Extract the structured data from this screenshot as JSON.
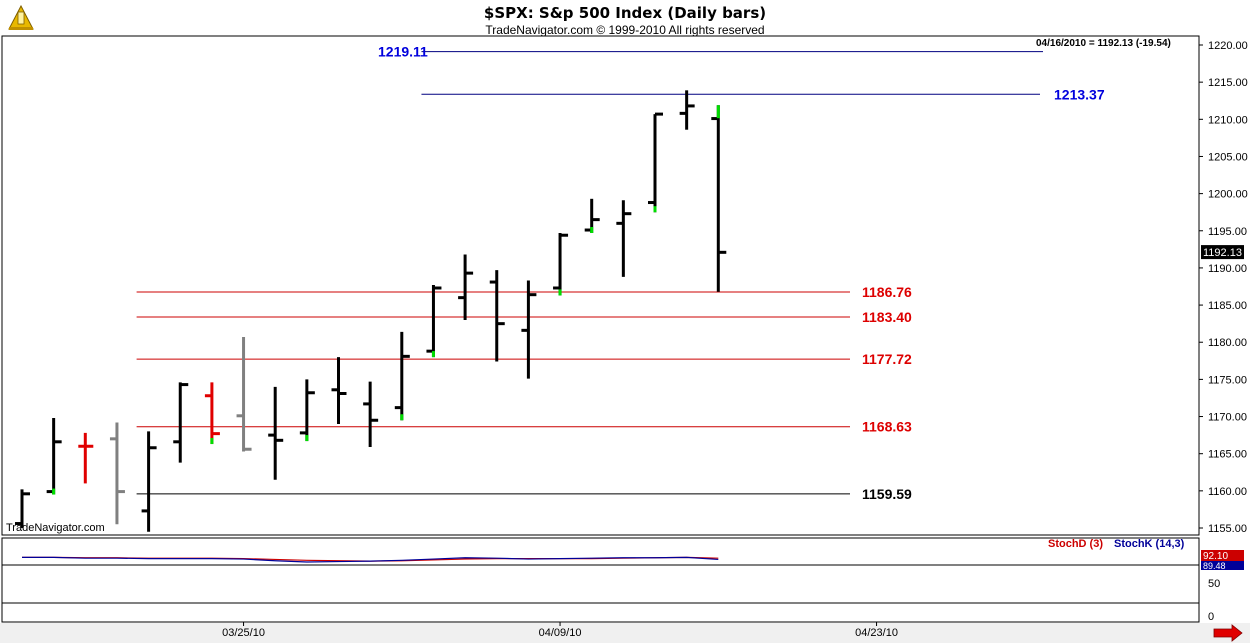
{
  "title": "$SPX:  S&p 500 Index  (Daily bars)",
  "subtitle": "TradeNavigator.com © 1999-2010 All rights reserved",
  "watermark": "TradeNavigator.com",
  "quote": "04/16/2010 = 1192.13 (-19.54)",
  "icons": {
    "logo": "trade-navigator-logo-icon",
    "next_arrow": "right-arrow-icon"
  },
  "colors": {
    "bar_default": "#000000",
    "bar_red": "#e00000",
    "bar_gray": "#808080",
    "tick_green": "#00dd00",
    "support_line": "#cc0000",
    "resistance_line": "#000080",
    "label_red": "#dd0000",
    "label_blue": "#0000dd",
    "stoch_d": "#cc0000",
    "stoch_k": "#000099"
  },
  "chart_data": {
    "type": "ohlc",
    "y_axis": {
      "min": 1155,
      "max": 1220,
      "ticks": [
        "1155.00",
        "1160.00",
        "1165.00",
        "1170.00",
        "1175.00",
        "1180.00",
        "1185.00",
        "1190.00",
        "1195.00",
        "1200.00",
        "1205.00",
        "1210.00",
        "1215.00",
        "1220.00"
      ],
      "last_price_label": "1192.13"
    },
    "x_axis": {
      "ticks": [
        {
          "label": "03/25/10",
          "index": 7
        },
        {
          "label": "04/09/10",
          "index": 17
        },
        {
          "label": "04/23/10",
          "index": 27
        }
      ]
    },
    "bars": [
      {
        "o": 1155.6,
        "h": 1160.2,
        "l": 1155.0,
        "c": 1159.6,
        "color": "black",
        "low_green": false
      },
      {
        "o": 1159.9,
        "h": 1169.8,
        "l": 1159.5,
        "c": 1166.6,
        "color": "black",
        "low_green": true
      },
      {
        "o": 1166.0,
        "h": 1167.8,
        "l": 1161.0,
        "c": 1166.0,
        "color": "red",
        "low_green": false
      },
      {
        "o": 1167.0,
        "h": 1169.2,
        "l": 1155.5,
        "c": 1159.9,
        "color": "gray",
        "low_green": false
      },
      {
        "o": 1157.3,
        "h": 1168.0,
        "l": 1154.5,
        "c": 1165.8,
        "color": "black",
        "low_green": false
      },
      {
        "o": 1166.6,
        "h": 1174.6,
        "l": 1163.8,
        "c": 1174.3,
        "color": "black",
        "low_green": false
      },
      {
        "o": 1172.8,
        "h": 1174.6,
        "l": 1166.3,
        "c": 1167.7,
        "color": "red",
        "low_green": true
      },
      {
        "o": 1170.1,
        "h": 1180.7,
        "l": 1165.3,
        "c": 1165.6,
        "color": "gray",
        "low_green": false
      },
      {
        "o": 1167.5,
        "h": 1174.0,
        "l": 1161.5,
        "c": 1166.8,
        "color": "black",
        "low_green": false
      },
      {
        "o": 1167.8,
        "h": 1175.0,
        "l": 1166.7,
        "c": 1173.2,
        "color": "black",
        "low_green": true
      },
      {
        "o": 1173.6,
        "h": 1178.0,
        "l": 1169.0,
        "c": 1173.1,
        "color": "black",
        "low_green": false
      },
      {
        "o": 1171.7,
        "h": 1174.7,
        "l": 1165.9,
        "c": 1169.5,
        "color": "black",
        "low_green": false
      },
      {
        "o": 1171.2,
        "h": 1181.4,
        "l": 1169.5,
        "c": 1178.1,
        "color": "black",
        "low_green": true
      },
      {
        "o": 1178.8,
        "h": 1187.7,
        "l": 1178.0,
        "c": 1187.3,
        "color": "black",
        "low_green": true
      },
      {
        "o": 1186.0,
        "h": 1191.8,
        "l": 1183.0,
        "c": 1189.3,
        "color": "black",
        "low_green": false
      },
      {
        "o": 1188.1,
        "h": 1189.7,
        "l": 1177.4,
        "c": 1182.5,
        "color": "black",
        "low_green": false
      },
      {
        "o": 1181.6,
        "h": 1188.3,
        "l": 1175.1,
        "c": 1186.4,
        "color": "black",
        "low_green": false
      },
      {
        "o": 1187.3,
        "h": 1194.7,
        "l": 1186.3,
        "c": 1194.4,
        "color": "black",
        "low_green": true
      },
      {
        "o": 1195.1,
        "h": 1199.3,
        "l": 1194.7,
        "c": 1196.5,
        "color": "black",
        "low_green": true
      },
      {
        "o": 1196.0,
        "h": 1199.1,
        "l": 1188.8,
        "c": 1197.3,
        "color": "black",
        "low_green": false
      },
      {
        "o": 1198.8,
        "h": 1210.7,
        "l": 1197.5,
        "c": 1210.7,
        "color": "black",
        "low_green": true
      },
      {
        "o": 1210.8,
        "h": 1213.9,
        "l": 1208.6,
        "c": 1211.8,
        "color": "black",
        "low_green": false
      },
      {
        "o": 1210.1,
        "h": 1211.9,
        "l": 1186.8,
        "c": 1192.1,
        "color": "black",
        "high_green": true
      }
    ],
    "levels": [
      {
        "value": 1219.11,
        "label": "1219.11",
        "color": "blue",
        "from": 13,
        "label_side": "left"
      },
      {
        "value": 1213.37,
        "label": "1213.37",
        "color": "blue",
        "from": 13,
        "label_side": "right"
      },
      {
        "value": 1186.76,
        "label": "1186.76",
        "color": "red",
        "from": 4,
        "label_side": "right"
      },
      {
        "value": 1183.4,
        "label": "1183.40",
        "color": "red",
        "from": 4,
        "label_side": "right"
      },
      {
        "value": 1177.72,
        "label": "1177.72",
        "color": "red",
        "from": 4,
        "label_side": "right"
      },
      {
        "value": 1168.63,
        "label": "1168.63",
        "color": "red",
        "from": 4,
        "label_side": "right"
      },
      {
        "value": 1159.59,
        "label": "1159.59",
        "color": "black",
        "from": 4,
        "label_side": "right"
      }
    ],
    "stochastic": {
      "legend": [
        {
          "name": "StochD (3)",
          "color": "red"
        },
        {
          "name": "StochK (14,3)",
          "color": "blue"
        }
      ],
      "y_ticks": [
        "0",
        "50"
      ],
      "last_values": [
        "92.10",
        "89.48"
      ],
      "k": [
        92,
        92,
        90,
        90,
        89,
        89,
        89,
        88,
        84,
        81,
        82,
        83,
        85,
        88,
        91,
        90,
        88,
        89,
        90,
        91,
        91,
        92,
        87
      ],
      "d": [
        92,
        92,
        91,
        91,
        90,
        90,
        90,
        89,
        87,
        85,
        84,
        83,
        84,
        86,
        88,
        89,
        89,
        89,
        89,
        90,
        91,
        92,
        90
      ]
    }
  }
}
